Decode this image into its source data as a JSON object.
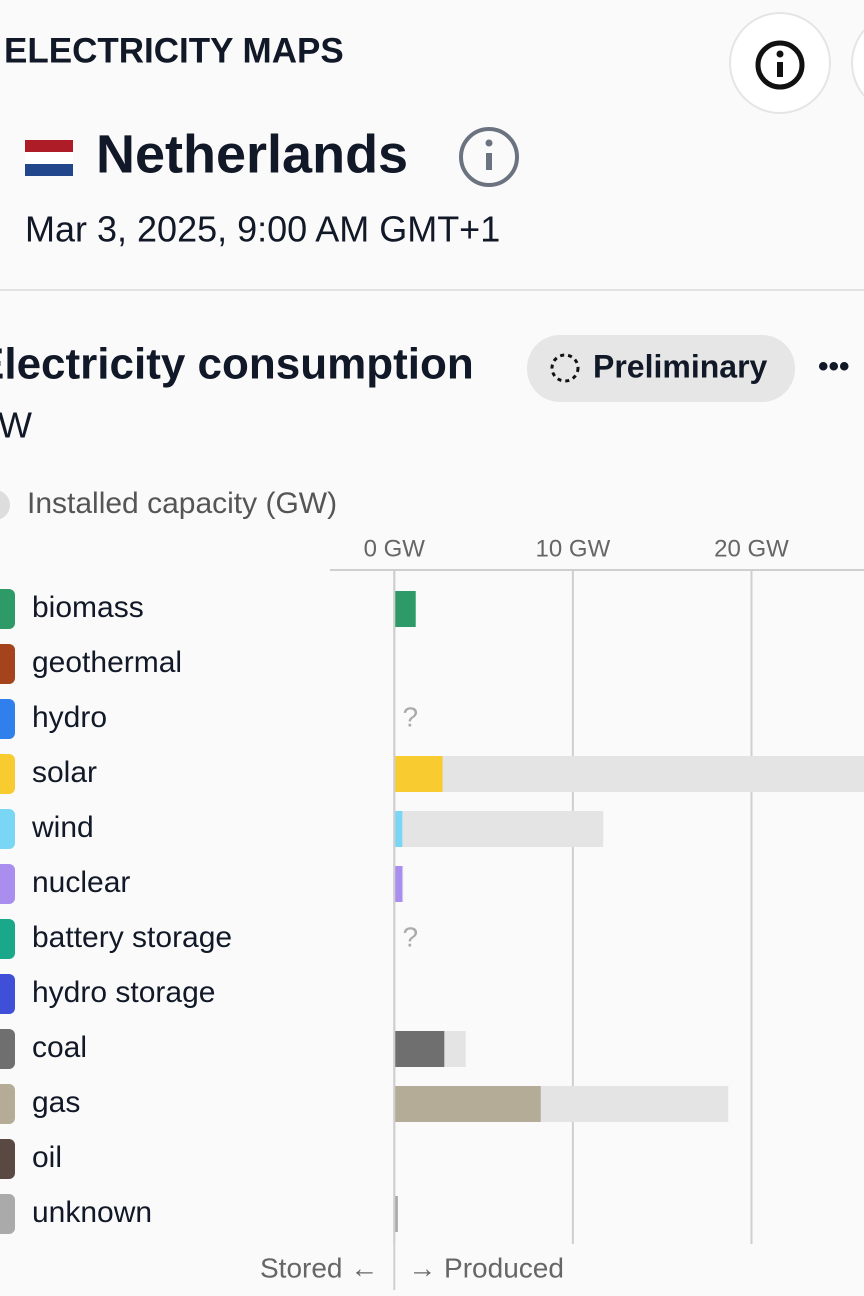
{
  "header": {
    "brand": "ELECTRICITY MAPS",
    "zone": "Netherlands",
    "datetime": "Mar 3, 2025, 9:00 AM GMT+1"
  },
  "panel": {
    "title": "Electricity consumption",
    "unit": "GW",
    "status": "Preliminary",
    "more": "•••"
  },
  "chart_data": {
    "type": "bar",
    "orientation": "horizontal",
    "categories": [
      "biomass",
      "geothermal",
      "hydro",
      "solar",
      "wind",
      "nuclear",
      "battery storage",
      "hydro storage",
      "coal",
      "gas",
      "oil",
      "unknown"
    ],
    "values": [
      1.2,
      0,
      null,
      2.7,
      0.45,
      0.45,
      null,
      0,
      2.8,
      8.2,
      0,
      0.2
    ],
    "value_labels": [
      null,
      null,
      "?",
      null,
      null,
      null,
      "?",
      null,
      null,
      null,
      null,
      null
    ],
    "colors": [
      "#2e9a68",
      "#a5441c",
      "#2f80ed",
      "#f8cc30",
      "#79d6f5",
      "#a98ef0",
      "#1aa88a",
      "#3f4fd8",
      "#6f6f6f",
      "#b5ac98",
      "#5a4843",
      "#aaaaaa"
    ],
    "capacity": {
      "label": "Installed capacity (GW)",
      "color": "#e4e4e4",
      "values": [
        null,
        null,
        null,
        28,
        11.7,
        0.5,
        null,
        null,
        4.0,
        18.7,
        null,
        null
      ]
    },
    "xlim": [
      -3.6,
      26.3
    ],
    "xticks": [
      {
        "value": 0,
        "label": "0 GW"
      },
      {
        "value": 10,
        "label": "10 GW"
      },
      {
        "value": 20,
        "label": "20 GW"
      }
    ],
    "grid": true,
    "axis_labels": {
      "left": "Stored ←",
      "right": "→ Produced"
    }
  }
}
